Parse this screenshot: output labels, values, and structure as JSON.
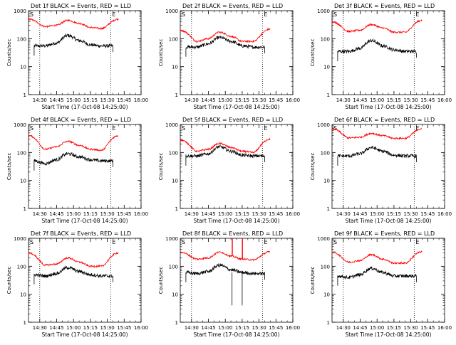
{
  "colors": {
    "events": "#000000",
    "lld": "#ff0000",
    "axis": "#000000",
    "background": "#ffffff"
  },
  "shared": {
    "ylabel": "Counts/sec",
    "xlabel": "Start Time (17-Oct-08 14:25:00)",
    "x_ticks": [
      "14:30",
      "14:45",
      "15:00",
      "15:15",
      "15:30",
      "15:45",
      "16:00"
    ],
    "y_ticks": [
      "1",
      "10",
      "100",
      "1000"
    ],
    "marker_s": "S",
    "marker_e": "E"
  },
  "chart_data": [
    {
      "type": "line",
      "title": "Det 1f BLACK = Events, RED = LLD",
      "xlabel": "Start Time (17-Oct-08 14:25:00)",
      "ylabel": "Counts/sec",
      "xlim": [
        "14:25",
        "16:05"
      ],
      "ylim": [
        1,
        1000
      ],
      "yscale": "log",
      "series": [
        {
          "name": "Events",
          "color": "#000000",
          "x_minutes": [
            0,
            10,
            20,
            30,
            40,
            50,
            60,
            70
          ],
          "values": [
            55,
            55,
            70,
            130,
            85,
            60,
            55,
            55
          ]
        },
        {
          "name": "LLD",
          "color": "#ff0000",
          "x_minutes": [
            -5,
            10,
            20,
            30,
            40,
            50,
            60,
            75
          ],
          "values": [
            500,
            270,
            300,
            450,
            350,
            250,
            230,
            500
          ]
        }
      ],
      "markers": {
        "S_minutes": 5,
        "E_minutes": 68
      }
    },
    {
      "type": "line",
      "title": "Det 2f BLACK = Events, RED = LLD",
      "xlabel": "Start Time (17-Oct-08 14:25:00)",
      "ylabel": "Counts/sec",
      "xlim": [
        "14:25",
        "16:05"
      ],
      "ylim": [
        1,
        1000
      ],
      "yscale": "log",
      "series": [
        {
          "name": "Events",
          "color": "#000000",
          "x_minutes": [
            0,
            10,
            20,
            30,
            40,
            50,
            60,
            70
          ],
          "values": [
            50,
            50,
            65,
            110,
            80,
            55,
            50,
            50
          ]
        },
        {
          "name": "LLD",
          "color": "#ff0000",
          "x_minutes": [
            -5,
            10,
            20,
            30,
            40,
            50,
            60,
            75
          ],
          "values": [
            200,
            80,
            100,
            170,
            120,
            80,
            80,
            220
          ]
        }
      ],
      "markers": {
        "S_minutes": 5,
        "E_minutes": 68
      }
    },
    {
      "type": "line",
      "title": "Det 3f BLACK = Events, RED = LLD",
      "xlabel": "Start Time (17-Oct-08 14:25:00)",
      "ylabel": "Counts/sec",
      "xlim": [
        "14:25",
        "16:05"
      ],
      "ylim": [
        1,
        1000
      ],
      "yscale": "log",
      "series": [
        {
          "name": "Events",
          "color": "#000000",
          "x_minutes": [
            0,
            10,
            20,
            30,
            40,
            50,
            60,
            70
          ],
          "values": [
            35,
            35,
            45,
            85,
            55,
            40,
            35,
            35
          ]
        },
        {
          "name": "LLD",
          "color": "#ff0000",
          "x_minutes": [
            -5,
            10,
            20,
            30,
            40,
            50,
            60,
            75
          ],
          "values": [
            400,
            180,
            200,
            320,
            240,
            170,
            170,
            450
          ]
        }
      ],
      "markers": {
        "S_minutes": 5,
        "E_minutes": 68
      }
    },
    {
      "type": "line",
      "title": "Det 4f BLACK = Events, RED = LLD",
      "xlabel": "Start Time (17-Oct-08 14:25:00)",
      "ylabel": "Counts/sec",
      "xlim": [
        "14:25",
        "16:05"
      ],
      "ylim": [
        1,
        1000
      ],
      "yscale": "log",
      "series": [
        {
          "name": "Events",
          "color": "#000000",
          "x_minutes": [
            0,
            10,
            20,
            30,
            40,
            50,
            60,
            70
          ],
          "values": [
            50,
            40,
            55,
            90,
            70,
            55,
            50,
            50
          ]
        },
        {
          "name": "LLD",
          "color": "#ff0000",
          "x_minutes": [
            -5,
            10,
            20,
            30,
            40,
            50,
            60,
            75
          ],
          "values": [
            400,
            130,
            160,
            250,
            180,
            130,
            120,
            400
          ]
        }
      ],
      "markers": {
        "S_minutes": 5,
        "E_minutes": 68
      }
    },
    {
      "type": "line",
      "title": "Det 5f BLACK = Events, RED = LLD",
      "xlabel": "Start Time (17-Oct-08 14:25:00)",
      "ylabel": "Counts/sec",
      "xlim": [
        "14:25",
        "16:05"
      ],
      "ylim": [
        1,
        1000
      ],
      "yscale": "log",
      "series": [
        {
          "name": "Events",
          "color": "#000000",
          "x_minutes": [
            0,
            10,
            20,
            30,
            40,
            50,
            60,
            70
          ],
          "values": [
            75,
            75,
            90,
            160,
            110,
            80,
            75,
            75
          ]
        },
        {
          "name": "LLD",
          "color": "#ff0000",
          "x_minutes": [
            -5,
            10,
            20,
            30,
            40,
            50,
            60,
            75
          ],
          "values": [
            280,
            110,
            130,
            210,
            150,
            110,
            100,
            300
          ]
        }
      ],
      "markers": {
        "S_minutes": 5,
        "E_minutes": 68
      }
    },
    {
      "type": "line",
      "title": "Det 6f BLACK = Events, RED = LLD",
      "xlabel": "Start Time (17-Oct-08 14:25:00)",
      "ylabel": "Counts/sec",
      "xlim": [
        "14:25",
        "16:05"
      ],
      "ylim": [
        1,
        1000
      ],
      "yscale": "log",
      "series": [
        {
          "name": "Events",
          "color": "#000000",
          "x_minutes": [
            0,
            10,
            20,
            30,
            40,
            50,
            60,
            70
          ],
          "values": [
            75,
            75,
            90,
            150,
            110,
            80,
            75,
            75
          ]
        },
        {
          "name": "LLD",
          "color": "#ff0000",
          "x_minutes": [
            -5,
            10,
            20,
            30,
            40,
            50,
            60,
            75
          ],
          "values": [
            700,
            330,
            350,
            480,
            400,
            320,
            320,
            700
          ]
        }
      ],
      "markers": {
        "S_minutes": 5,
        "E_minutes": 68
      }
    },
    {
      "type": "line",
      "title": "Det 7f BLACK = Events, RED = LLD",
      "xlabel": "Start Time (17-Oct-08 14:25:00)",
      "ylabel": "Counts/sec",
      "xlim": [
        "14:25",
        "16:05"
      ],
      "ylim": [
        1,
        1000
      ],
      "yscale": "log",
      "series": [
        {
          "name": "Events",
          "color": "#000000",
          "x_minutes": [
            0,
            10,
            20,
            30,
            40,
            50,
            60,
            70
          ],
          "values": [
            50,
            45,
            55,
            90,
            65,
            50,
            45,
            45
          ]
        },
        {
          "name": "LLD",
          "color": "#ff0000",
          "x_minutes": [
            -5,
            10,
            20,
            30,
            40,
            50,
            60,
            75
          ],
          "values": [
            300,
            110,
            120,
            200,
            140,
            100,
            100,
            300
          ]
        }
      ],
      "markers": {
        "S_minutes": 5,
        "E_minutes": 68
      }
    },
    {
      "type": "line",
      "title": "Det 8f BLACK = Events, RED = LLD",
      "xlabel": "Start Time (17-Oct-08 14:25:00)",
      "ylabel": "Counts/sec",
      "xlim": [
        "14:25",
        "16:05"
      ],
      "ylim": [
        1,
        1000
      ],
      "yscale": "log",
      "series": [
        {
          "name": "Events",
          "color": "#000000",
          "x_minutes": [
            0,
            10,
            20,
            30,
            40,
            50,
            60,
            70
          ],
          "values": [
            60,
            55,
            65,
            110,
            75,
            60,
            55,
            55
          ]
        },
        {
          "name": "LLD",
          "color": "#ff0000",
          "x_minutes": [
            -5,
            10,
            20,
            30,
            40,
            50,
            60,
            75
          ],
          "values": [
            320,
            180,
            200,
            320,
            230,
            180,
            170,
            330
          ]
        }
      ],
      "markers": {
        "S_minutes": 5,
        "E_minutes": 68
      },
      "spike_minutes": [
        41,
        50
      ]
    },
    {
      "type": "line",
      "title": "Det 9f BLACK = Events, RED = LLD",
      "xlabel": "Start Time (17-Oct-08 14:25:00)",
      "ylabel": "Counts/sec",
      "xlim": [
        "14:25",
        "16:05"
      ],
      "ylim": [
        1,
        1000
      ],
      "yscale": "log",
      "series": [
        {
          "name": "Events",
          "color": "#000000",
          "x_minutes": [
            0,
            10,
            20,
            30,
            40,
            50,
            60,
            70
          ],
          "values": [
            45,
            40,
            50,
            85,
            60,
            45,
            45,
            45
          ]
        },
        {
          "name": "LLD",
          "color": "#ff0000",
          "x_minutes": [
            -5,
            10,
            20,
            30,
            40,
            50,
            60,
            75
          ],
          "values": [
            320,
            140,
            160,
            260,
            180,
            130,
            130,
            330
          ]
        }
      ],
      "markers": {
        "S_minutes": 5,
        "E_minutes": 68
      }
    }
  ]
}
